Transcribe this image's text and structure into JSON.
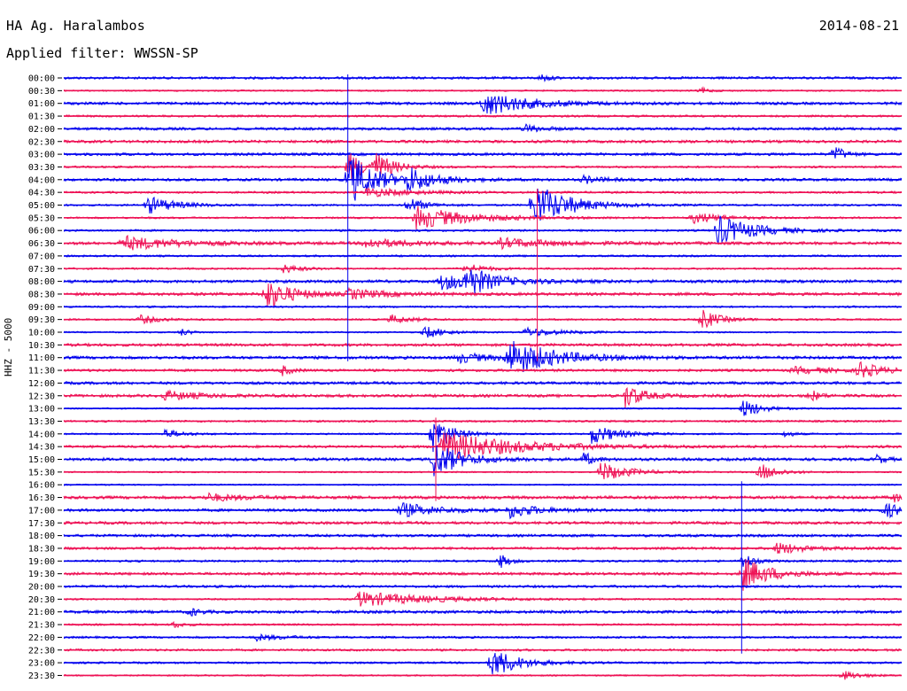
{
  "header": {
    "station": "HA Ag. Haralambos",
    "date": "2014-08-21",
    "filter_label": "Applied filter:",
    "filter_value": "WWSSN-SP"
  },
  "axis": {
    "channel_label": "HHZ - 5000"
  },
  "colors": {
    "odd_trace": "#0000ee",
    "even_trace": "#ee1155",
    "background": "#ffffff",
    "text": "#000000"
  },
  "chart_data": {
    "type": "line",
    "title": "HA Ag. Haralambos",
    "subtitle": "Applied filter: WWSSN-SP",
    "ylabel": "HHZ - 5000",
    "xlabel": "",
    "grid": false,
    "y_tick_labels": [
      "00:00",
      "00:30",
      "01:00",
      "01:30",
      "02:00",
      "02:30",
      "03:00",
      "03:30",
      "04:00",
      "04:30",
      "05:00",
      "05:30",
      "06:00",
      "06:30",
      "07:00",
      "07:30",
      "08:00",
      "08:30",
      "09:00",
      "09:30",
      "10:00",
      "10:30",
      "11:00",
      "11:30",
      "12:00",
      "12:30",
      "13:00",
      "13:30",
      "14:00",
      "14:30",
      "15:00",
      "15:30",
      "16:00",
      "16:30",
      "17:00",
      "17:30",
      "18:00",
      "18:30",
      "19:00",
      "19:30",
      "20:00",
      "20:30",
      "21:00",
      "21:30",
      "22:00",
      "22:30",
      "23:00",
      "23:30"
    ],
    "trace_duration_minutes": 30,
    "series_colors": [
      "blue",
      "red"
    ],
    "events": [
      {
        "row": 0,
        "t": 0.57,
        "amp": 0.5,
        "dur": 0.01
      },
      {
        "row": 1,
        "t": 0.76,
        "amp": 0.4,
        "dur": 0.01
      },
      {
        "row": 2,
        "t": 0.5,
        "amp": 1.6,
        "dur": 0.05
      },
      {
        "row": 4,
        "t": 0.55,
        "amp": 0.5,
        "dur": 0.02
      },
      {
        "row": 6,
        "t": 0.92,
        "amp": 1.2,
        "dur": 0.01
      },
      {
        "row": 7,
        "t": 0.34,
        "amp": 2.0,
        "dur": 0.02
      },
      {
        "row": 7,
        "t": 0.37,
        "amp": 1.8,
        "dur": 0.02
      },
      {
        "row": 8,
        "t": 0.34,
        "amp": 3.5,
        "dur": 0.03
      },
      {
        "row": 8,
        "t": 0.41,
        "amp": 1.5,
        "dur": 0.03
      },
      {
        "row": 8,
        "t": 0.62,
        "amp": 0.5,
        "dur": 0.02
      },
      {
        "row": 9,
        "t": 0.36,
        "amp": 0.6,
        "dur": 0.05
      },
      {
        "row": 10,
        "t": 0.1,
        "amp": 1.2,
        "dur": 0.03
      },
      {
        "row": 10,
        "t": 0.41,
        "amp": 1.0,
        "dur": 0.02
      },
      {
        "row": 10,
        "t": 0.56,
        "amp": 3.0,
        "dur": 0.04
      },
      {
        "row": 11,
        "t": 0.42,
        "amp": 1.5,
        "dur": 0.06
      },
      {
        "row": 11,
        "t": 0.75,
        "amp": 0.8,
        "dur": 0.03
      },
      {
        "row": 12,
        "t": 0.78,
        "amp": 2.0,
        "dur": 0.04
      },
      {
        "row": 13,
        "t": 0.07,
        "amp": 0.9,
        "dur": 0.06
      },
      {
        "row": 13,
        "t": 0.36,
        "amp": 0.6,
        "dur": 0.05
      },
      {
        "row": 13,
        "t": 0.52,
        "amp": 0.6,
        "dur": 0.06
      },
      {
        "row": 15,
        "t": 0.26,
        "amp": 0.6,
        "dur": 0.02
      },
      {
        "row": 15,
        "t": 0.48,
        "amp": 0.7,
        "dur": 0.02
      },
      {
        "row": 16,
        "t": 0.45,
        "amp": 1.0,
        "dur": 0.06
      },
      {
        "row": 16,
        "t": 0.48,
        "amp": 2.0,
        "dur": 0.02
      },
      {
        "row": 17,
        "t": 0.24,
        "amp": 2.0,
        "dur": 0.03
      },
      {
        "row": 17,
        "t": 0.34,
        "amp": 0.6,
        "dur": 0.04
      },
      {
        "row": 19,
        "t": 0.09,
        "amp": 0.6,
        "dur": 0.02
      },
      {
        "row": 19,
        "t": 0.39,
        "amp": 0.6,
        "dur": 0.02
      },
      {
        "row": 19,
        "t": 0.76,
        "amp": 1.4,
        "dur": 0.02
      },
      {
        "row": 20,
        "t": 0.14,
        "amp": 0.5,
        "dur": 0.01
      },
      {
        "row": 20,
        "t": 0.43,
        "amp": 0.9,
        "dur": 0.02
      },
      {
        "row": 20,
        "t": 0.55,
        "amp": 0.6,
        "dur": 0.04
      },
      {
        "row": 22,
        "t": 0.47,
        "amp": 0.6,
        "dur": 0.04
      },
      {
        "row": 22,
        "t": 0.53,
        "amp": 2.4,
        "dur": 0.05
      },
      {
        "row": 23,
        "t": 0.26,
        "amp": 0.7,
        "dur": 0.01
      },
      {
        "row": 23,
        "t": 0.87,
        "amp": 0.4,
        "dur": 0.05
      },
      {
        "row": 23,
        "t": 0.95,
        "amp": 1.1,
        "dur": 0.02
      },
      {
        "row": 25,
        "t": 0.12,
        "amp": 0.6,
        "dur": 0.04
      },
      {
        "row": 25,
        "t": 0.67,
        "amp": 1.6,
        "dur": 0.02
      },
      {
        "row": 25,
        "t": 0.89,
        "amp": 0.9,
        "dur": 0.01
      },
      {
        "row": 26,
        "t": 0.81,
        "amp": 1.3,
        "dur": 0.02
      },
      {
        "row": 28,
        "t": 0.12,
        "amp": 0.6,
        "dur": 0.02
      },
      {
        "row": 28,
        "t": 0.44,
        "amp": 2.6,
        "dur": 0.02
      },
      {
        "row": 28,
        "t": 0.63,
        "amp": 1.3,
        "dur": 0.03
      },
      {
        "row": 28,
        "t": 0.86,
        "amp": 0.5,
        "dur": 0.01
      },
      {
        "row": 29,
        "t": 0.45,
        "amp": 2.0,
        "dur": 0.08
      },
      {
        "row": 30,
        "t": 0.44,
        "amp": 2.5,
        "dur": 0.03
      },
      {
        "row": 30,
        "t": 0.62,
        "amp": 1.0,
        "dur": 0.01
      },
      {
        "row": 30,
        "t": 0.97,
        "amp": 0.6,
        "dur": 0.01
      },
      {
        "row": 31,
        "t": 0.64,
        "amp": 1.4,
        "dur": 0.03
      },
      {
        "row": 31,
        "t": 0.83,
        "amp": 1.2,
        "dur": 0.02
      },
      {
        "row": 33,
        "t": 0.17,
        "amp": 0.5,
        "dur": 0.04
      },
      {
        "row": 33,
        "t": 0.99,
        "amp": 0.6,
        "dur": 0.01
      },
      {
        "row": 34,
        "t": 0.4,
        "amp": 1.0,
        "dur": 0.04
      },
      {
        "row": 34,
        "t": 0.53,
        "amp": 1.0,
        "dur": 0.03
      },
      {
        "row": 34,
        "t": 0.98,
        "amp": 0.9,
        "dur": 0.03
      },
      {
        "row": 37,
        "t": 0.85,
        "amp": 0.8,
        "dur": 0.03
      },
      {
        "row": 38,
        "t": 0.52,
        "amp": 1.0,
        "dur": 0.01
      },
      {
        "row": 38,
        "t": 0.81,
        "amp": 1.3,
        "dur": 0.01
      },
      {
        "row": 39,
        "t": 0.81,
        "amp": 2.2,
        "dur": 0.03
      },
      {
        "row": 41,
        "t": 0.35,
        "amp": 1.0,
        "dur": 0.08
      },
      {
        "row": 42,
        "t": 0.15,
        "amp": 0.6,
        "dur": 0.01
      },
      {
        "row": 43,
        "t": 0.13,
        "amp": 0.5,
        "dur": 0.01
      },
      {
        "row": 44,
        "t": 0.23,
        "amp": 0.4,
        "dur": 0.03
      },
      {
        "row": 46,
        "t": 0.51,
        "amp": 2.0,
        "dur": 0.03
      },
      {
        "row": 47,
        "t": 0.93,
        "amp": 0.6,
        "dur": 0.02
      }
    ],
    "spikes": [
      {
        "row": 0,
        "t": 0.339,
        "to_row": 22
      },
      {
        "row": 9,
        "t": 0.565,
        "to_row": 22
      },
      {
        "row": 32,
        "t": 0.809,
        "to_row": 45
      },
      {
        "row": 27,
        "t": 0.444,
        "to_row": 33
      }
    ]
  }
}
